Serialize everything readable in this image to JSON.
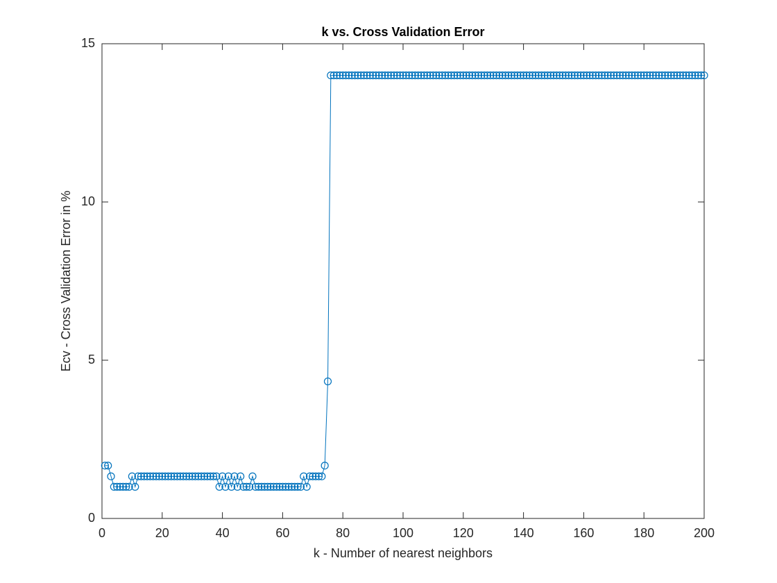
{
  "chart_data": {
    "type": "line",
    "title": "k vs. Cross Validation Error",
    "x_label": "k - Number of nearest neighbors",
    "y_label": "Ecv - Cross Validation Error in %",
    "xlim": [
      0,
      200
    ],
    "xticks": [
      0,
      20,
      40,
      60,
      80,
      100,
      120,
      140,
      160,
      180,
      200
    ],
    "ylim": [
      0,
      15
    ],
    "yticks": [
      0,
      5,
      10,
      15
    ],
    "series": [
      {
        "color": "#0072bd",
        "marker": "circle",
        "x": [
          1,
          2,
          3,
          4,
          5,
          6,
          7,
          8,
          9,
          10,
          11,
          12,
          13,
          14,
          15,
          16,
          17,
          18,
          19,
          20,
          21,
          22,
          23,
          24,
          25,
          26,
          27,
          28,
          29,
          30,
          31,
          32,
          33,
          34,
          35,
          36,
          37,
          38,
          39,
          40,
          41,
          42,
          43,
          44,
          45,
          46,
          47,
          48,
          49,
          50,
          51,
          52,
          53,
          54,
          55,
          56,
          57,
          58,
          59,
          60,
          61,
          62,
          63,
          64,
          65,
          66,
          67,
          68,
          69,
          70,
          71,
          72,
          73,
          74,
          75,
          76,
          77,
          78,
          79,
          80,
          81,
          82,
          83,
          84,
          85,
          86,
          87,
          88,
          89,
          90,
          91,
          92,
          93,
          94,
          95,
          96,
          97,
          98,
          99,
          100,
          101,
          102,
          103,
          104,
          105,
          106,
          107,
          108,
          109,
          110,
          111,
          112,
          113,
          114,
          115,
          116,
          117,
          118,
          119,
          120,
          121,
          122,
          123,
          124,
          125,
          126,
          127,
          128,
          129,
          130,
          131,
          132,
          133,
          134,
          135,
          136,
          137,
          138,
          139,
          140,
          141,
          142,
          143,
          144,
          145,
          146,
          147,
          148,
          149,
          150,
          151,
          152,
          153,
          154,
          155,
          156,
          157,
          158,
          159,
          160,
          161,
          162,
          163,
          164,
          165,
          166,
          167,
          168,
          169,
          170,
          171,
          172,
          173,
          174,
          175,
          176,
          177,
          178,
          179,
          180,
          181,
          182,
          183,
          184,
          185,
          186,
          187,
          188,
          189,
          190,
          191,
          192,
          193,
          194,
          195,
          196,
          197,
          198,
          199,
          200
        ],
        "values": [
          1.67,
          1.67,
          1.33,
          1,
          1,
          1,
          1,
          1,
          1,
          1.33,
          1,
          1.33,
          1.33,
          1.33,
          1.33,
          1.33,
          1.33,
          1.33,
          1.33,
          1.33,
          1.33,
          1.33,
          1.33,
          1.33,
          1.33,
          1.33,
          1.33,
          1.33,
          1.33,
          1.33,
          1.33,
          1.33,
          1.33,
          1.33,
          1.33,
          1.33,
          1.33,
          1.33,
          1,
          1.33,
          1,
          1.33,
          1,
          1.33,
          1,
          1.33,
          1,
          1,
          1,
          1.33,
          1,
          1,
          1,
          1,
          1,
          1,
          1,
          1,
          1,
          1,
          1,
          1,
          1,
          1,
          1,
          1,
          1.33,
          1,
          1.33,
          1.33,
          1.33,
          1.33,
          1.33,
          1.67,
          4.33,
          14,
          14,
          14,
          14,
          14,
          14,
          14,
          14,
          14,
          14,
          14,
          14,
          14,
          14,
          14,
          14,
          14,
          14,
          14,
          14,
          14,
          14,
          14,
          14,
          14,
          14,
          14,
          14,
          14,
          14,
          14,
          14,
          14,
          14,
          14,
          14,
          14,
          14,
          14,
          14,
          14,
          14,
          14,
          14,
          14,
          14,
          14,
          14,
          14,
          14,
          14,
          14,
          14,
          14,
          14,
          14,
          14,
          14,
          14,
          14,
          14,
          14,
          14,
          14,
          14,
          14,
          14,
          14,
          14,
          14,
          14,
          14,
          14,
          14,
          14,
          14,
          14,
          14,
          14,
          14,
          14,
          14,
          14,
          14,
          14,
          14,
          14,
          14,
          14,
          14,
          14,
          14,
          14,
          14,
          14,
          14,
          14,
          14,
          14,
          14,
          14,
          14,
          14,
          14,
          14,
          14,
          14,
          14,
          14,
          14,
          14,
          14,
          14,
          14,
          14,
          14,
          14,
          14,
          14,
          14,
          14,
          14,
          14,
          14,
          14
        ]
      }
    ]
  }
}
